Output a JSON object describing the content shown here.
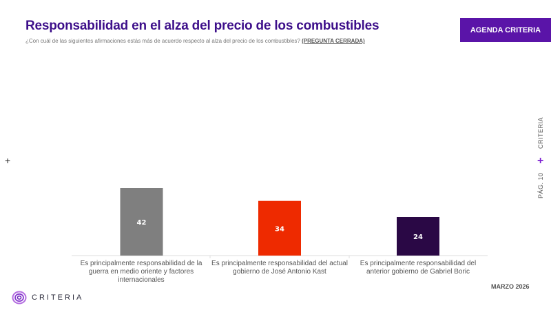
{
  "header": {
    "title": "Responsabilidad en el alza del precio de los combustibles",
    "subtitle": "¿Con cuál de las siguientes afirmaciones estás más de acuerdo respecto al alza del precio de los combustibles?",
    "subtitle_tag": "(PREGUNTA CERRADA)",
    "badge": "AGENDA CRITERIA"
  },
  "side": {
    "brand": "CRITERIA",
    "page": "PÁG. 10"
  },
  "footer": {
    "logo_text": "CRITERIA",
    "date": "MARZO 2026"
  },
  "colors": {
    "title": "#3d0f8a",
    "accent": "#5a14a8"
  },
  "chart_data": {
    "type": "bar",
    "title": "Responsabilidad en el alza del precio de los combustibles",
    "categories": [
      "Es principalmente responsabilidad de la guerra en medio oriente y factores internacionales",
      "Es principalmente responsabilidad del actual gobierno de José Antonio Kast",
      "Es principalmente responsabilidad del anterior gobierno de Gabriel Boric"
    ],
    "values": [
      42,
      34,
      24
    ],
    "colors": [
      "#7f7f7f",
      "#ee2a00",
      "#2a0845"
    ],
    "data_labels": [
      "42",
      "34",
      "24"
    ],
    "xlabel": "",
    "ylabel": "",
    "ylim": [
      0,
      100
    ],
    "grid": false,
    "legend": "none"
  }
}
